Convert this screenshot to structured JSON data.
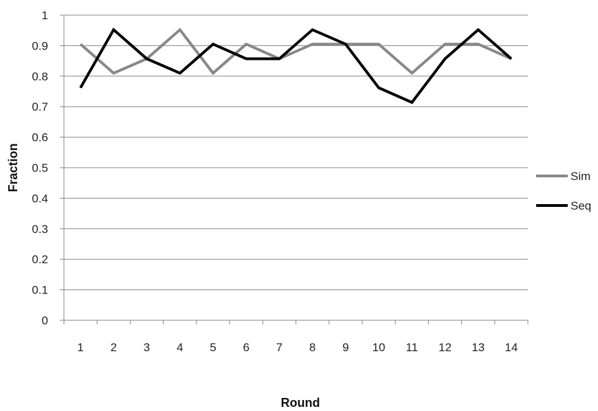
{
  "chart_data": {
    "type": "line",
    "title": "",
    "xlabel": "Round",
    "ylabel": "Fraction",
    "x": [
      1,
      2,
      3,
      4,
      5,
      6,
      7,
      8,
      9,
      10,
      11,
      12,
      13,
      14
    ],
    "ylim": [
      0,
      1
    ],
    "yticks": [
      "0",
      "0.1",
      "0.2",
      "0.3",
      "0.4",
      "0.5",
      "0.6",
      "0.7",
      "0.8",
      "0.9",
      "1"
    ],
    "xticks": [
      "1",
      "2",
      "3",
      "4",
      "5",
      "6",
      "7",
      "8",
      "9",
      "10",
      "11",
      "12",
      "13",
      "14"
    ],
    "grid": "horizontal",
    "legend": "right",
    "series": [
      {
        "name": "Sim",
        "color": "#888888",
        "values": [
          0.905,
          0.81,
          0.857,
          0.952,
          0.81,
          0.905,
          0.857,
          0.905,
          0.905,
          0.905,
          0.81,
          0.905,
          0.905,
          0.857
        ]
      },
      {
        "name": "Seq",
        "color": "#000000",
        "values": [
          0.762,
          0.952,
          0.857,
          0.81,
          0.905,
          0.857,
          0.857,
          0.952,
          0.905,
          0.762,
          0.714,
          0.857,
          0.952,
          0.857
        ]
      }
    ]
  }
}
